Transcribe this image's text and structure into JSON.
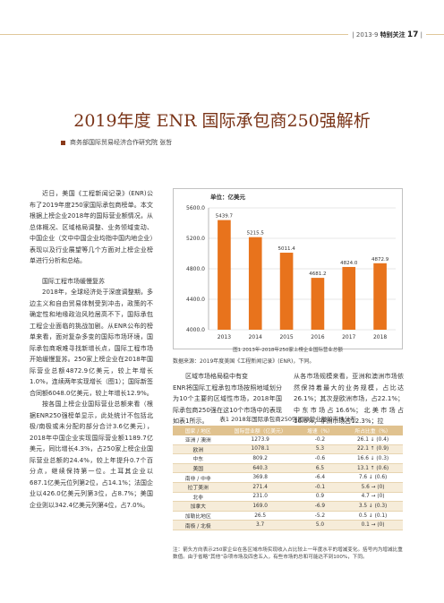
{
  "running_header": {
    "issue": "| 2013·9",
    "section": "特别关注",
    "page": "17",
    "bar": "|"
  },
  "title": "2019年度 ENR 国际承包商250强解析",
  "byline": "商务部国际贸易经济合作研究院  张哲",
  "left_column": {
    "p1": "近日，美国《工程新闻记录》(ENR)公布了2019年度250家国际承包商榜单。本文根据上榜企业2018年的国际营业额情况，从总体概况、区域格局调整、业务领域变动、中国企业（文中中国企业均指中国内地企业）表现以及行业展望等几个方面对上榜企业榜单进行分析和总结。",
    "heading": "国际工程市场缓慢复苏",
    "p2": "2018年，全球经济处于深度调整期，多边主义和自由贸易体制受到冲击，政策的不确定性和地缘政治风险居高不下，国际承包工程企业面临的挑战加剧。从ENR公布的榜单来看，面对复杂多变的国际市场环境，国际承包商艰难寻找新增长点，国际工程市场开始缓慢复苏。250家上榜企业在2018年国际营业总额4872.9亿美元，较上年增长1.0%，连续两年实现增长（图1）；国际新签合同额6048.0亿美元，较上年增长12.9%。",
    "p3": "按各国上榜企业国际营业总额来看（根据ENR250强榜单显示，此处统计不包括北极/南极或未分配的部分合计3.6亿美元），2018年中国企业实现国际营业额1189.7亿美元，同比增长4.3%，占250家上榜企业国际营业总额的24.4%，较上年提升0.7个百分点，继续保持第一位。土耳其企业以687.1亿美元位列第2位，占14.1%；法国企业以426.0亿美元列第3位，占8.7%；美国企业则以342.4亿美元列第4位，占7.0%。"
  },
  "chart_data": {
    "type": "bar",
    "categories": [
      "2013",
      "2014",
      "2015",
      "2016",
      "2017",
      "2018"
    ],
    "values": [
      5439.7,
      5215.5,
      5011.4,
      4681.2,
      4824.0,
      4872.9
    ],
    "value_labels": [
      "5439.7",
      "5215.5",
      "5011.4",
      "4681.2",
      "4824.0",
      "4872.9"
    ],
    "title": "单位：亿美元",
    "xlabel": "",
    "ylabel": "",
    "ylim": [
      4000,
      5600
    ],
    "yticks": [
      4000,
      4400,
      4800,
      5200,
      5600
    ],
    "ytick_labels": [
      "4000.0",
      "4400.0",
      "4800.0",
      "5200.0",
      "5600.0"
    ],
    "bar_color": "#e8731c",
    "grid": true,
    "legend": "none"
  },
  "figure": {
    "caption": "图1  2013年-2018年250家上榜企业国际营业总额",
    "source": "数据来源：2019年度美国《工程新闻记录》(ENR)，下同。"
  },
  "middle_column": {
    "heading": "区域市场格局稳中有变",
    "p1": "ENR将国际工程承包市场按照地域划分为10个主要的区域性市场，2018年国际承包商250强在这10个市场中的表现如表1所示。"
  },
  "right_column": {
    "p1": "从各市场规模来看，亚洲和澳洲市场依然保持着最大的业务规模，占比达26.1%；其次是欧洲市场，占22.1%；中东市场占16.6%；北美市场占16.6%；非洲市场占12.3%；拉"
  },
  "table": {
    "caption": "表1  2018年国际承包商250强国际营业额的市场分布",
    "headers": [
      "国家 / 地区",
      "国际营业额（亿美元）",
      "增速（%）",
      "所占比重（%）"
    ],
    "rows": [
      [
        "亚洲 / 澳洲",
        "1273.9",
        "-0.2",
        "26.1 ↓ (0.4)"
      ],
      [
        "欧洲",
        "1078.1",
        "5.3",
        "22.1 ↑ (0.9)"
      ],
      [
        "中东",
        "809.2",
        "-0.6",
        "16.6 ↓ (0.3)"
      ],
      [
        "美国",
        "640.3",
        "6.5",
        "13.1 ↑ (0.6)"
      ],
      [
        "南非 / 中非",
        "369.8",
        "-6.4",
        "7.6 ↓ (0.6)"
      ],
      [
        "拉丁美洲",
        "271.4",
        "-0.1",
        "5.6 → (0)"
      ],
      [
        "北非",
        "231.0",
        "0.9",
        "4.7 → (0)"
      ],
      [
        "加拿大",
        "169.0",
        "-6.9",
        "3.5 ↓ (0.3)"
      ],
      [
        "加勒比地区",
        "26.5",
        "-5.2",
        "0.5 ↓ (0.1)"
      ],
      [
        "南极 / 北极",
        "3.7",
        "5.0",
        "0.1 → (0)"
      ]
    ],
    "note": "注：箭头方向表示250家企业在各区域市场实现收入占比较上一年度水平的增减变化。括号内为增减比重数值。由于省略“其他”杂项市场及四舍五入，有些市场的总和可能达不到100%，下同。"
  }
}
